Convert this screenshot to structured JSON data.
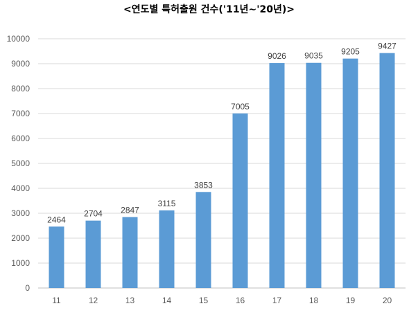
{
  "chart_data": {
    "type": "bar",
    "title": "<연도별 특허출원 건수('11년~'20년)>",
    "xlabel": "",
    "ylabel": "",
    "categories": [
      "11",
      "12",
      "13",
      "14",
      "15",
      "16",
      "17",
      "18",
      "19",
      "20"
    ],
    "values": [
      2464,
      2704,
      2847,
      3115,
      3853,
      7005,
      9026,
      9035,
      9205,
      9427
    ],
    "ylim": [
      0,
      10000
    ],
    "yticks": [
      "0",
      "1000",
      "2000",
      "3000",
      "4000",
      "5000",
      "6000",
      "7000",
      "8000",
      "9000",
      "10000"
    ],
    "grid": true,
    "legend": "none",
    "bar_color": "#5B9BD5",
    "grid_color": "#D9D9D9"
  }
}
